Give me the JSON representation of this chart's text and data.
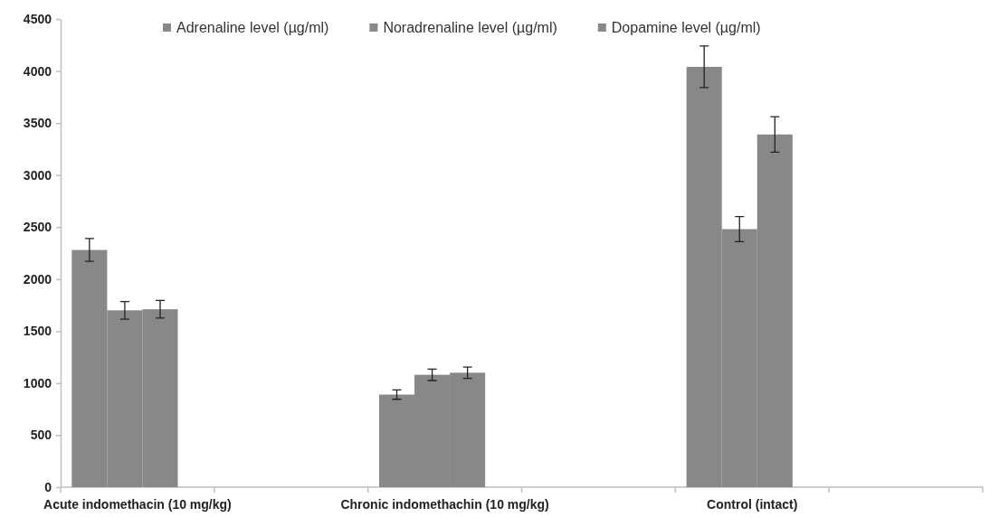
{
  "chart_data": {
    "type": "bar",
    "categories": [
      "Acute indomethacin (10 mg/kg)",
      null,
      "Chronic indomethachin (10 mg/kg)",
      null,
      "Control (intact)",
      null
    ],
    "series": [
      {
        "name": "Adrenaline level (µg/ml)",
        "color": "#888888",
        "values": [
          2280,
          null,
          890,
          null,
          4040,
          null
        ],
        "errors": [
          110,
          null,
          45,
          null,
          200,
          null
        ]
      },
      {
        "name": "Noradrenaline level (µg/ml)",
        "color": "#888888",
        "values": [
          1700,
          null,
          1080,
          null,
          2480,
          null
        ],
        "errors": [
          85,
          null,
          55,
          null,
          120,
          null
        ]
      },
      {
        "name": "Dopamine level (µg/ml)",
        "color": "#888888",
        "values": [
          1710,
          null,
          1100,
          null,
          3390,
          null
        ],
        "errors": [
          85,
          null,
          55,
          null,
          170,
          null
        ]
      }
    ],
    "ylim": [
      0,
      4500
    ],
    "yticks": [
      0,
      500,
      1000,
      1500,
      2000,
      2500,
      3000,
      3500,
      4000,
      4500
    ],
    "grid": false,
    "legend": "top"
  }
}
